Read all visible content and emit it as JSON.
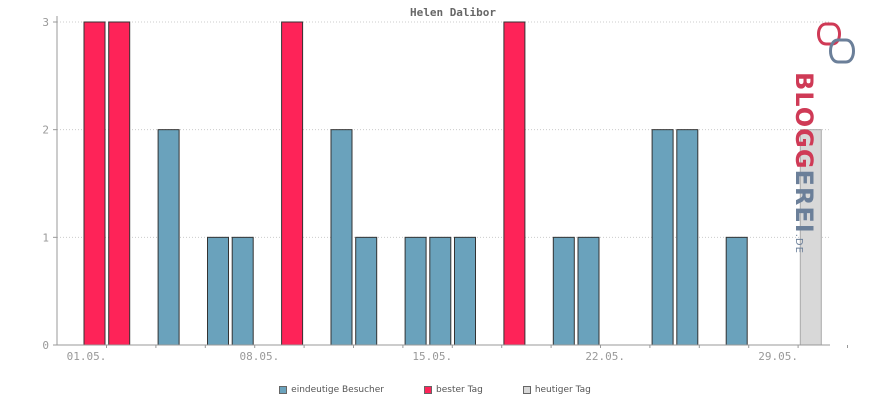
{
  "chart_data": {
    "type": "bar",
    "title": "Helen Dalibor",
    "xlabel": "",
    "ylabel": "",
    "ylim": [
      0,
      3
    ],
    "yticks": [
      0,
      1,
      2,
      3
    ],
    "x_tick_labels": [
      {
        "day": 1,
        "label": "01.05."
      },
      {
        "day": 8,
        "label": "08.05."
      },
      {
        "day": 15,
        "label": "15.05."
      },
      {
        "day": 22,
        "label": "22.05."
      },
      {
        "day": 29,
        "label": "29.05."
      }
    ],
    "days": [
      1,
      2,
      3,
      4,
      5,
      6,
      7,
      8,
      9,
      10,
      11,
      12,
      13,
      14,
      15,
      16,
      17,
      18,
      19,
      20,
      21,
      22,
      23,
      24,
      25,
      26,
      27,
      28,
      29,
      30
    ],
    "values": [
      3,
      3,
      0,
      2,
      0,
      1,
      1,
      0,
      3,
      0,
      2,
      1,
      0,
      1,
      1,
      1,
      0,
      3,
      0,
      1,
      1,
      0,
      0,
      2,
      2,
      0,
      1,
      0,
      0,
      2
    ],
    "bar_type": [
      "best",
      "best",
      "unique",
      "unique",
      "unique",
      "unique",
      "unique",
      "unique",
      "best",
      "unique",
      "unique",
      "unique",
      "unique",
      "unique",
      "unique",
      "unique",
      "unique",
      "best",
      "unique",
      "unique",
      "unique",
      "unique",
      "unique",
      "unique",
      "unique",
      "unique",
      "unique",
      "unique",
      "unique",
      "today"
    ],
    "colors": {
      "unique": "#6aa2bc",
      "best": "#fe2358",
      "today": "#d8d8d8",
      "grid": "#cccccc",
      "axis": "#999999"
    },
    "legend": [
      {
        "key": "unique",
        "label": "eindeutige Besucher"
      },
      {
        "key": "best",
        "label": "bester Tag"
      },
      {
        "key": "today",
        "label": "heutiger Tag"
      }
    ],
    "grid": true
  },
  "logo": {
    "part1": "BLOGG",
    "part2": "EREI",
    "suffix": ".DE"
  }
}
